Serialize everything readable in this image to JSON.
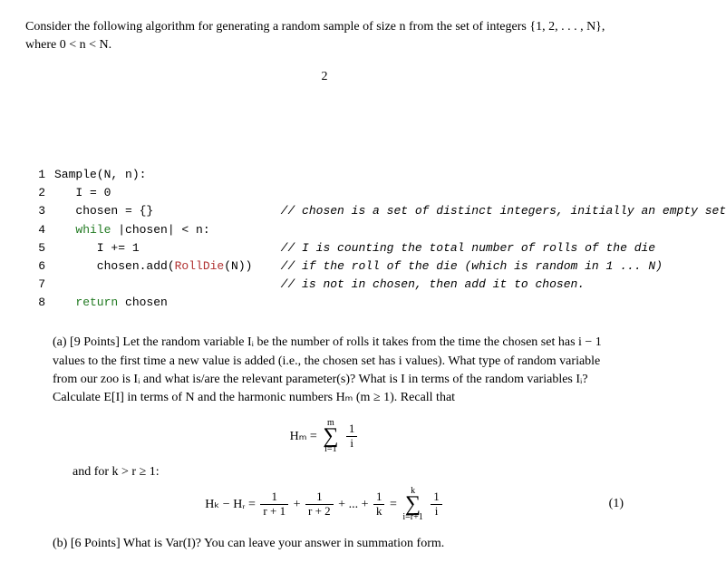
{
  "intro": "Consider the following algorithm for generating a random sample of size n from the set of integers {1, 2, . . . , N}, where 0 < n < N.",
  "page_number": "2",
  "code": {
    "lines": [
      {
        "n": "1",
        "indent": 0,
        "text": "Sample(N, n):",
        "comment": ""
      },
      {
        "n": "2",
        "indent": 1,
        "text": "I = 0",
        "comment": ""
      },
      {
        "n": "3",
        "indent": 1,
        "text": "chosen = {}",
        "comment": "// chosen is a set of distinct integers, initially an empty set"
      },
      {
        "n": "4",
        "indent": 1,
        "text_pre": "",
        "kw": "while",
        "text_post": " |chosen| < n:",
        "comment": ""
      },
      {
        "n": "5",
        "indent": 2,
        "text": "I += 1",
        "comment": "// I is counting the total number of rolls of the die"
      },
      {
        "n": "6",
        "indent": 2,
        "text_pre": "chosen.add(",
        "fn": "RollDie",
        "text_post": "(N))",
        "comment": "// if the roll of the die (which is random in 1 ... N)"
      },
      {
        "n": "7",
        "indent": 2,
        "text": "",
        "comment": "// is not in chosen, then add it to chosen."
      },
      {
        "n": "8",
        "indent": 1,
        "text_pre": "",
        "kw": "return",
        "text_post": " chosen",
        "comment": ""
      }
    ],
    "indent_unit": "   ",
    "comment_col": 32
  },
  "part_a": {
    "label": "(a) [9 Points] ",
    "text": "Let the random variable Iᵢ be the number of rolls it takes from the time the chosen set has i − 1 values to the first time a new value is added (i.e., the chosen set has i values). What type of random variable from our zoo is Iᵢ and what is/are the relevant parameter(s)? What is I in terms of the random variables Iᵢ? Calculate E[I] in terms of N and the harmonic numbers Hₘ (m ≥ 1). Recall that"
  },
  "hm_def": {
    "lhs": "Hₘ = ",
    "top": "m",
    "bot": "i=1",
    "frac_num": "1",
    "frac_den": "i"
  },
  "and_for": "and for k > r ≥ 1:",
  "eq1": {
    "lhs": "Hₖ − Hᵣ = ",
    "t1_num": "1",
    "t1_den": "r + 1",
    "plus1": " + ",
    "t2_num": "1",
    "t2_den": "r + 2",
    "dots": " + ... + ",
    "t3_num": "1",
    "t3_den": "k",
    "eq": " = ",
    "top": "k",
    "bot": "i=r+1",
    "frac_num": "1",
    "frac_den": "i",
    "num": "(1)"
  },
  "part_b": {
    "label": "(b) [6 Points] ",
    "text": "What is Var(I)? You can leave your answer in summation form."
  }
}
